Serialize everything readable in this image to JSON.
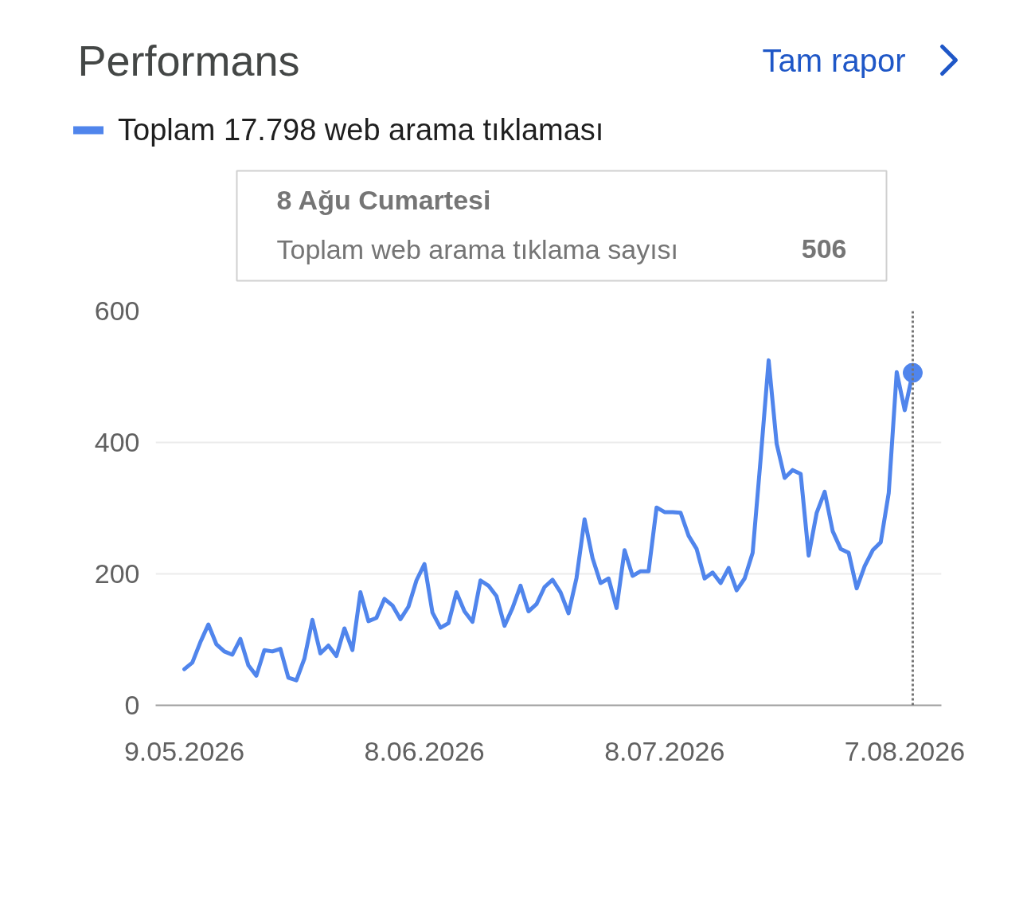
{
  "chart_data": {
    "type": "line",
    "title": "Performans",
    "annotations": [
      "Tam rapor",
      "8 Ağu Cumartesi\nToplam web arama tıklama sayısı\n506"
    ],
    "x": [
      "2026-05-09",
      "2026-05-10",
      "2026-05-11",
      "2026-05-12",
      "2026-05-13",
      "2026-05-14",
      "2026-05-15",
      "2026-05-16",
      "2026-05-17",
      "2026-05-18",
      "2026-05-19",
      "2026-05-20",
      "2026-05-21",
      "2026-05-22",
      "2026-05-23",
      "2026-05-24",
      "2026-05-25",
      "2026-05-26",
      "2026-05-27",
      "2026-05-28",
      "2026-05-29",
      "2026-05-30",
      "2026-05-31",
      "2026-06-01",
      "2026-06-02",
      "2026-06-03",
      "2026-06-04",
      "2026-06-05",
      "2026-06-06",
      "2026-06-07",
      "2026-06-08",
      "2026-06-09",
      "2026-06-10",
      "2026-06-11",
      "2026-06-12",
      "2026-06-13",
      "2026-06-14",
      "2026-06-15",
      "2026-06-16",
      "2026-06-17",
      "2026-06-18",
      "2026-06-19",
      "2026-06-20",
      "2026-06-21",
      "2026-06-22",
      "2026-06-23",
      "2026-06-24",
      "2026-06-25",
      "2026-06-26",
      "2026-06-27",
      "2026-06-28",
      "2026-06-29",
      "2026-06-30",
      "2026-07-01",
      "2026-07-02",
      "2026-07-03",
      "2026-07-04",
      "2026-07-05",
      "2026-07-06",
      "2026-07-07",
      "2026-07-08",
      "2026-07-09",
      "2026-07-10",
      "2026-07-11",
      "2026-07-12",
      "2026-07-13",
      "2026-07-14",
      "2026-07-15",
      "2026-07-16",
      "2026-07-17",
      "2026-07-18",
      "2026-07-19",
      "2026-07-20",
      "2026-07-21",
      "2026-07-22",
      "2026-07-23",
      "2026-07-24",
      "2026-07-25",
      "2026-07-26",
      "2026-07-27",
      "2026-07-28",
      "2026-07-29",
      "2026-07-30",
      "2026-07-31",
      "2026-08-01",
      "2026-08-02",
      "2026-08-03",
      "2026-08-04",
      "2026-08-05",
      "2026-08-06",
      "2026-08-07",
      "2026-08-08"
    ],
    "series": [
      {
        "name": "Toplam 17.798 web arama tıklaması",
        "color": "#5085ec",
        "values": [
          55,
          65,
          96,
          123,
          93,
          82,
          77,
          101,
          61,
          45,
          84,
          82,
          86,
          42,
          38,
          71,
          130,
          79,
          91,
          75,
          117,
          84,
          172,
          128,
          133,
          162,
          152,
          131,
          150,
          190,
          215,
          141,
          118,
          125,
          172,
          143,
          127,
          190,
          182,
          166,
          121,
          148,
          182,
          143,
          154,
          180,
          191,
          172,
          140,
          194,
          283,
          224,
          186,
          193,
          148,
          236,
          197,
          204,
          204,
          301,
          294,
          294,
          293,
          258,
          238,
          193,
          202,
          186,
          209,
          175,
          193,
          232,
          375,
          525,
          398,
          346,
          358,
          352,
          228,
          293,
          325,
          265,
          238,
          232,
          178,
          212,
          236,
          248,
          323,
          507,
          449,
          506
        ]
      },
      {
        "type": "scatter",
        "x": [
          "2026-08-08"
        ],
        "values": [
          506
        ],
        "color": "#5085ec",
        "marker": "circle"
      }
    ],
    "xlim": [
      "2026-05-05T10:00",
      "2026-08-11T14:00"
    ],
    "ylim": [
      0,
      600
    ],
    "xticks": [
      {
        "value": "2026-05-09",
        "label": "9.05.2026"
      },
      {
        "value": "2026-06-08",
        "label": "8.06.2026"
      },
      {
        "value": "2026-07-08",
        "label": "8.07.2026"
      },
      {
        "value": "2026-08-07",
        "label": "7.08.2026"
      }
    ],
    "yticks": [
      0,
      200,
      400,
      600
    ],
    "ref_lines": [
      {
        "axis": "x",
        "value": "2026-08-08",
        "line_style": "dotted",
        "color": "#757575"
      }
    ],
    "grid": "y",
    "legend": "top left"
  }
}
